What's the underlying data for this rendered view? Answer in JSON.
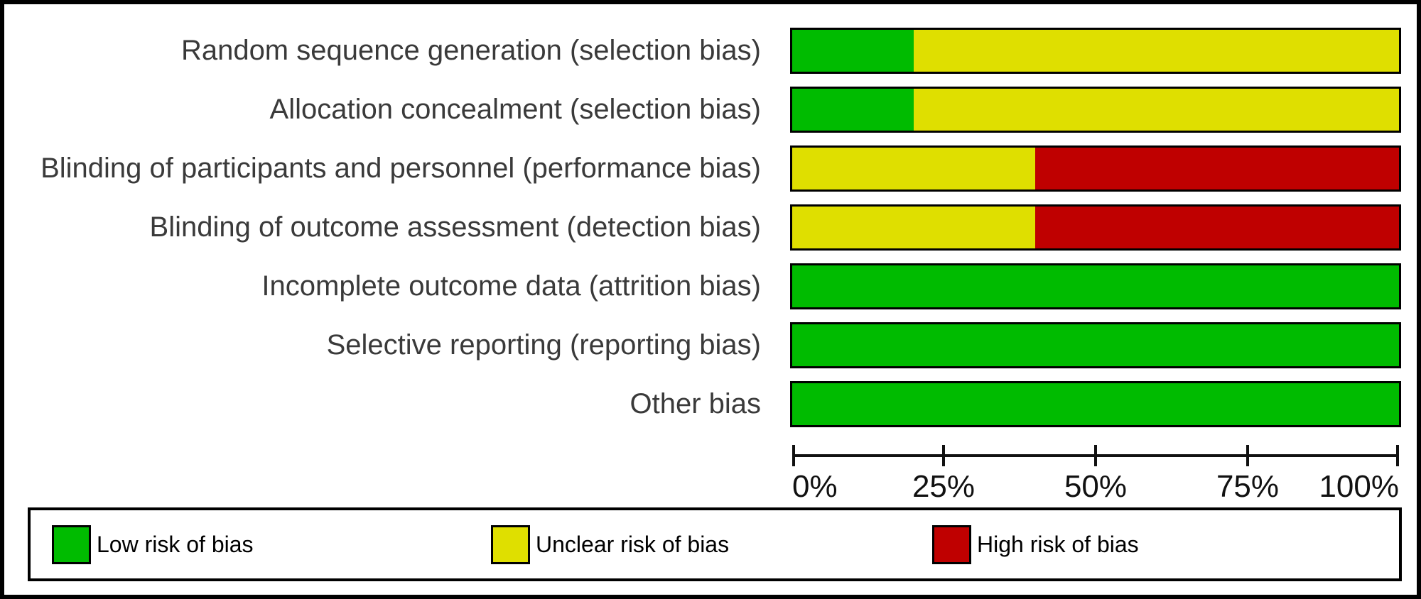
{
  "chart_data": {
    "type": "bar",
    "subtype": "horizontal_stacked_percentage",
    "title": "",
    "categories": [
      "Random sequence generation (selection bias)",
      "Allocation concealment (selection bias)",
      "Blinding of participants and personnel (performance bias)",
      "Blinding of outcome assessment (detection bias)",
      "Incomplete outcome data (attrition bias)",
      "Selective reporting (reporting bias)",
      "Other bias"
    ],
    "series": [
      {
        "name": "Low risk of bias",
        "risk": "low",
        "color": "#00bb00",
        "values": [
          20,
          20,
          0,
          0,
          100,
          100,
          100
        ]
      },
      {
        "name": "Unclear risk of bias",
        "risk": "unclear",
        "color": "#dfdf00",
        "values": [
          80,
          80,
          40,
          40,
          0,
          0,
          0
        ]
      },
      {
        "name": "High risk of bias",
        "risk": "high",
        "color": "#bf0000",
        "values": [
          0,
          0,
          60,
          60,
          0,
          0,
          0
        ]
      }
    ],
    "x_axis": {
      "min": 0,
      "max": 100,
      "unit": "%",
      "ticks": [
        "0%",
        "25%",
        "50%",
        "75%",
        "100%"
      ]
    },
    "legend": {
      "position": "bottom",
      "entries": [
        "Low risk of bias",
        "Unclear risk of bias",
        "High risk of bias"
      ]
    },
    "grid": false
  },
  "colors": {
    "low_risk": "#00bb00",
    "unclear_risk": "#dfdf00",
    "high_risk": "#bf0000",
    "border": "#000000",
    "label_text": "#3a3a3a"
  }
}
